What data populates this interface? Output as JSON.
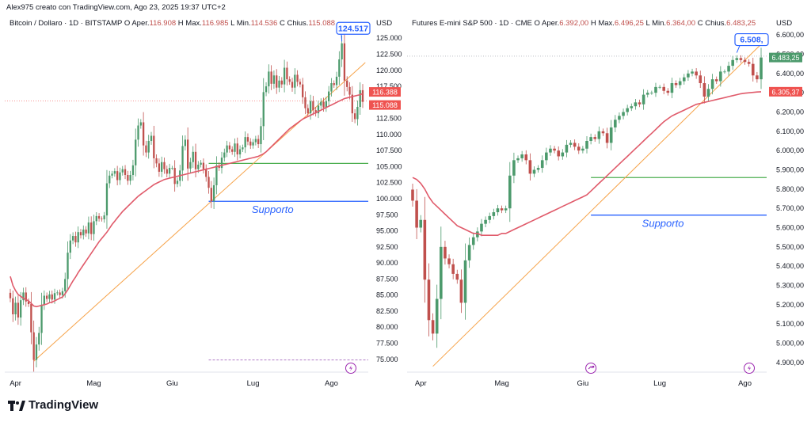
{
  "credit": "Alex975 creato con TradingView.com, Ago 23, 2025 19:37 UTC+2",
  "brand": "TradingView",
  "chart_data": [
    {
      "type": "candlestick",
      "legend": {
        "name": "Bitcoin / Dollaro · 1D · BITSTAMP",
        "o_label": "O",
        "o_key": "Aper.",
        "o_val": "116.908",
        "h_label": "H",
        "h_key": "Max.",
        "h_val": "116.985",
        "l_label": "L",
        "l_key": "Min.",
        "l_val": "114.536",
        "c_label": "C",
        "c_key": "Chius.",
        "c_val": "115.088"
      },
      "currency": "USD",
      "ylim": [
        73000,
        127000
      ],
      "yticks": [
        "125.000",
        "122.500",
        "120.000",
        "117.500",
        "112.500",
        "110.000",
        "107.500",
        "105.000",
        "102.500",
        "100.000",
        "97.500",
        "95.000",
        "92.500",
        "90.000",
        "87.500",
        "85.000",
        "82.500",
        "80.000",
        "77.500",
        "75.000"
      ],
      "ytick_values": [
        125000,
        122500,
        120000,
        117500,
        112500,
        110000,
        107500,
        105000,
        102500,
        100000,
        97500,
        95000,
        92500,
        90000,
        87500,
        85000,
        82500,
        80000,
        77500,
        75000
      ],
      "x_months": [
        "Apr",
        "Mag",
        "Giu",
        "Lug",
        "Ago"
      ],
      "x_month_index": [
        2,
        32,
        62,
        93,
        123
      ],
      "closes": [
        84500,
        82000,
        83800,
        81500,
        84200,
        85400,
        84000,
        83600,
        79200,
        74900,
        77300,
        79100,
        83500,
        84900,
        84400,
        85100,
        84300,
        85300,
        85400,
        85000,
        85600,
        87500,
        91600,
        93500,
        94200,
        93200,
        94800,
        94300,
        95200,
        94600,
        96300,
        94500,
        96500,
        97300,
        96900,
        96800,
        97400,
        102400,
        103600,
        103900,
        104300,
        102900,
        104100,
        104600,
        103700,
        102800,
        103700,
        105200,
        109200,
        111400,
        111900,
        108300,
        107200,
        109000,
        109800,
        106300,
        105500,
        104200,
        105700,
        104600,
        103900,
        104800,
        104800,
        102300,
        102800,
        104400,
        108200,
        109200,
        104700,
        105700,
        107300,
        104600,
        105300,
        105600,
        104600,
        103400,
        101700,
        99600,
        102100,
        105200,
        104800,
        106400,
        107200,
        108300,
        107700,
        107300,
        108600,
        106900,
        107700,
        108000,
        109600,
        108900,
        108300,
        108800,
        109300,
        108500,
        111300,
        116600,
        117500,
        119800,
        117900,
        119200,
        117300,
        118400,
        117800,
        120400,
        118600,
        118200,
        117300,
        119300,
        118200,
        117800,
        115800,
        114100,
        113300,
        115200,
        113800,
        113300,
        114500,
        115100,
        114200,
        115200,
        116700,
        118000,
        117700,
        119000,
        121700,
        124200,
        118400,
        117400,
        116200,
        113300,
        112400,
        114300,
        116900,
        115088
      ],
      "last_close": 115088,
      "ema": [
        87900,
        86500,
        85700,
        85100,
        84800,
        84500,
        84300,
        84100,
        83700,
        83300,
        83200,
        83300,
        83400,
        83500,
        83600,
        83800,
        83900,
        84100,
        84300,
        84500,
        84700,
        85200,
        85800,
        86500,
        87200,
        87800,
        88500,
        89100,
        89700,
        90300,
        90900,
        91500,
        92100,
        92700,
        93300,
        93800,
        94300,
        94800,
        95400,
        96000,
        96500,
        97000,
        97500,
        98000,
        98400,
        98800,
        99200,
        99600,
        100000,
        100400,
        100700,
        101000,
        101300,
        101600,
        101900,
        102200,
        102400,
        102600,
        102800,
        103000,
        103100,
        103200,
        103300,
        103400,
        103500,
        103600,
        103700,
        103800,
        103900,
        104000,
        104100,
        104200,
        104300,
        104400,
        104500,
        104600,
        104700,
        104800,
        104900,
        105000,
        105100,
        105200,
        105300,
        105400,
        105500,
        105600,
        105700,
        105800,
        105900,
        106000,
        106100,
        106200,
        106300,
        106400,
        106500,
        106600,
        106800,
        107000,
        107300,
        107700,
        108100,
        108500,
        108900,
        109300,
        109700,
        110100,
        110500,
        110900,
        111200,
        111500,
        111800,
        112100,
        112400,
        112600,
        112800,
        113000,
        113200,
        113400,
        113600,
        113800,
        114000,
        114200,
        114400,
        114600,
        114800,
        115000,
        115200,
        115400,
        115600,
        115700,
        115800,
        115900,
        116000,
        116100,
        116200,
        116388
      ],
      "ema_last": 116388,
      "price_labels": [
        "116.388",
        "115.088"
      ],
      "trendline": {
        "from": [
          9,
          74700
        ],
        "to": [
          136,
          121200
        ]
      },
      "support": {
        "value": 99600,
        "from": 76,
        "label": "Supporto"
      },
      "resistance": {
        "value": 105500,
        "from": 76
      },
      "peak_callout": {
        "index": 127,
        "value": 124500,
        "label": "124.517"
      },
      "dotted_level": 115200,
      "purple_dashed_level": 74900,
      "last_price_line": 115088
    },
    {
      "type": "candlestick",
      "legend": {
        "name": "Futures E-mini S&P 500 · 1D · CME",
        "o_label": "O",
        "o_key": "Aper.",
        "o_val": "6.392,00",
        "h_label": "H",
        "h_key": "Max.",
        "h_val": "6.496,25",
        "l_label": "L",
        "l_key": "Min.",
        "l_val": "6.364,00",
        "c_label": "C",
        "c_key": "Chius.",
        "c_val": "6.483,25"
      },
      "currency": "USD",
      "ylim": [
        4850,
        6650
      ],
      "yticks": [
        "6.600,00",
        "6.500,00",
        "6.400,00",
        "6.300,00",
        "6.200,00",
        "6.100,00",
        "6.000,00",
        "5.900,00",
        "5.800,00",
        "5.700,00",
        "5.600,00",
        "5.500,00",
        "5.400,00",
        "5.300,00",
        "5.200,00",
        "5.100,00",
        "5.000,00",
        "4.900,00"
      ],
      "ytick_values": [
        6600,
        6500,
        6400,
        6300,
        6200,
        6100,
        6000,
        5900,
        5800,
        5700,
        5600,
        5500,
        5400,
        5300,
        5200,
        5100,
        5000,
        4900
      ],
      "x_months": [
        "Apr",
        "Mag",
        "Giu",
        "Lug",
        "Ago"
      ],
      "x_month_index": [
        2,
        22,
        42,
        61,
        82
      ],
      "closes": [
        5740,
        5600,
        5640,
        5330,
        5120,
        5050,
        5230,
        5500,
        5440,
        5410,
        5360,
        5330,
        5210,
        5430,
        5510,
        5550,
        5580,
        5620,
        5640,
        5660,
        5680,
        5700,
        5690,
        5700,
        5870,
        5950,
        5960,
        5980,
        5950,
        5880,
        5900,
        5910,
        5950,
        5990,
        6010,
        6000,
        5970,
        5990,
        6030,
        6040,
        6020,
        6000,
        6010,
        6050,
        6070,
        6060,
        6100,
        6090,
        6040,
        6120,
        6160,
        6180,
        6200,
        6220,
        6230,
        6250,
        6240,
        6290,
        6300,
        6300,
        6330,
        6330,
        6310,
        6300,
        6350,
        6340,
        6360,
        6380,
        6400,
        6410,
        6390,
        6350,
        6280,
        6320,
        6370,
        6360,
        6410,
        6410,
        6440,
        6470,
        6480,
        6470,
        6460,
        6450,
        6390,
        6370,
        6483
      ],
      "last_close": 6483,
      "ema": [
        5860,
        5850,
        5830,
        5800,
        5760,
        5730,
        5710,
        5690,
        5670,
        5650,
        5630,
        5610,
        5600,
        5590,
        5580,
        5570,
        5570,
        5560,
        5560,
        5560,
        5560,
        5560,
        5570,
        5570,
        5580,
        5590,
        5600,
        5610,
        5620,
        5630,
        5640,
        5650,
        5660,
        5670,
        5680,
        5690,
        5700,
        5710,
        5720,
        5730,
        5740,
        5750,
        5760,
        5770,
        5790,
        5810,
        5830,
        5850,
        5870,
        5890,
        5910,
        5930,
        5950,
        5970,
        5990,
        6010,
        6030,
        6050,
        6070,
        6090,
        6110,
        6130,
        6150,
        6165,
        6180,
        6190,
        6200,
        6210,
        6220,
        6230,
        6240,
        6245,
        6250,
        6255,
        6260,
        6265,
        6270,
        6275,
        6280,
        6285,
        6290,
        6295,
        6298,
        6300,
        6302,
        6304,
        6305
      ],
      "ema_last": 6305.37,
      "price_labels": [
        "6.305,37",
        "6.483,25"
      ],
      "trendline": {
        "from": [
          5,
          4880
        ],
        "to": [
          88,
          6580
        ]
      },
      "support": {
        "value": 5665,
        "from": 44,
        "label": "Supporto"
      },
      "resistance": {
        "value": 5860,
        "from": 44
      },
      "peak_callout": {
        "index": 80,
        "value": 6508,
        "label": "6.508,"
      },
      "dotted_level": 6490,
      "last_price_line": 6483
    }
  ]
}
